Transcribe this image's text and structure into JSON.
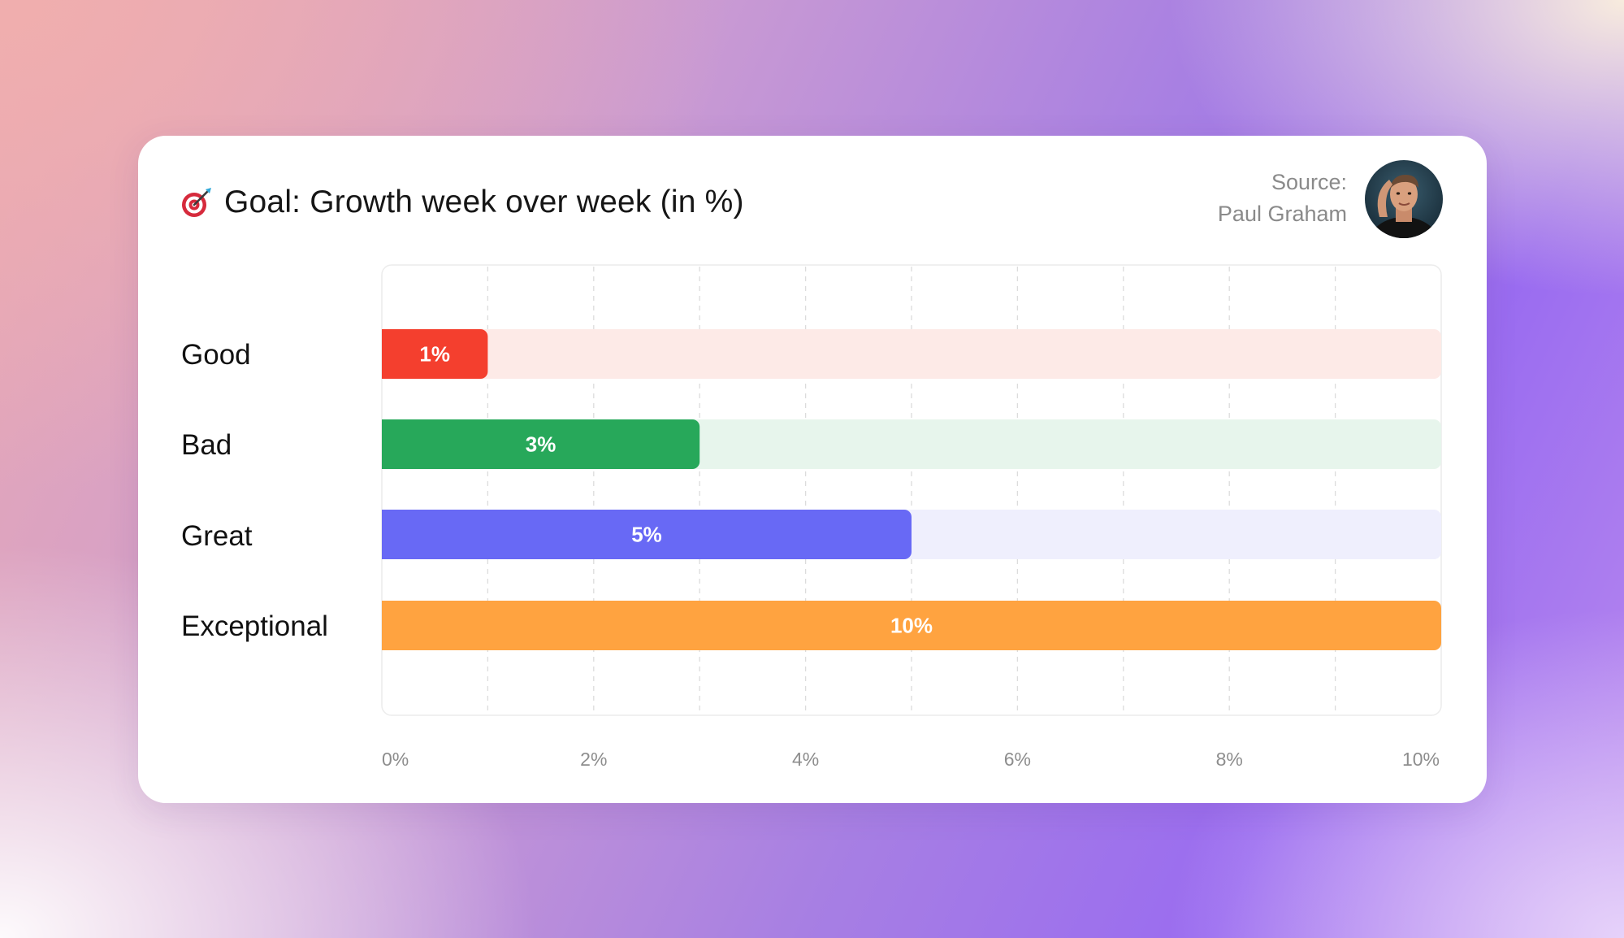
{
  "card": {
    "title": "Goal: Growth week over week (in %)",
    "title_icon": "target-dart-icon",
    "source_label": "Source:",
    "source_name": "Paul Graham",
    "avatar_icon": "person-avatar"
  },
  "chart_data": {
    "type": "bar",
    "orientation": "horizontal",
    "title": "Goal: Growth week over week (in %)",
    "categories": [
      "Good",
      "Bad",
      "Great",
      "Exceptional"
    ],
    "values": [
      1,
      3,
      5,
      10
    ],
    "value_labels": [
      "1%",
      "3%",
      "5%",
      "10%"
    ],
    "colors": [
      "#f43f2e",
      "#27a85a",
      "#6869f5",
      "#ffa340"
    ],
    "track_colors": [
      "#fdeae7",
      "#e7f5ec",
      "#efeffd",
      "#fff1e2"
    ],
    "xlim": [
      0,
      10
    ],
    "x_ticks": [
      0,
      2,
      4,
      6,
      8,
      10
    ],
    "x_tick_labels": [
      "0%",
      "2%",
      "4%",
      "6%",
      "8%",
      "10%"
    ],
    "grid": true,
    "xlabel": "",
    "ylabel": ""
  }
}
